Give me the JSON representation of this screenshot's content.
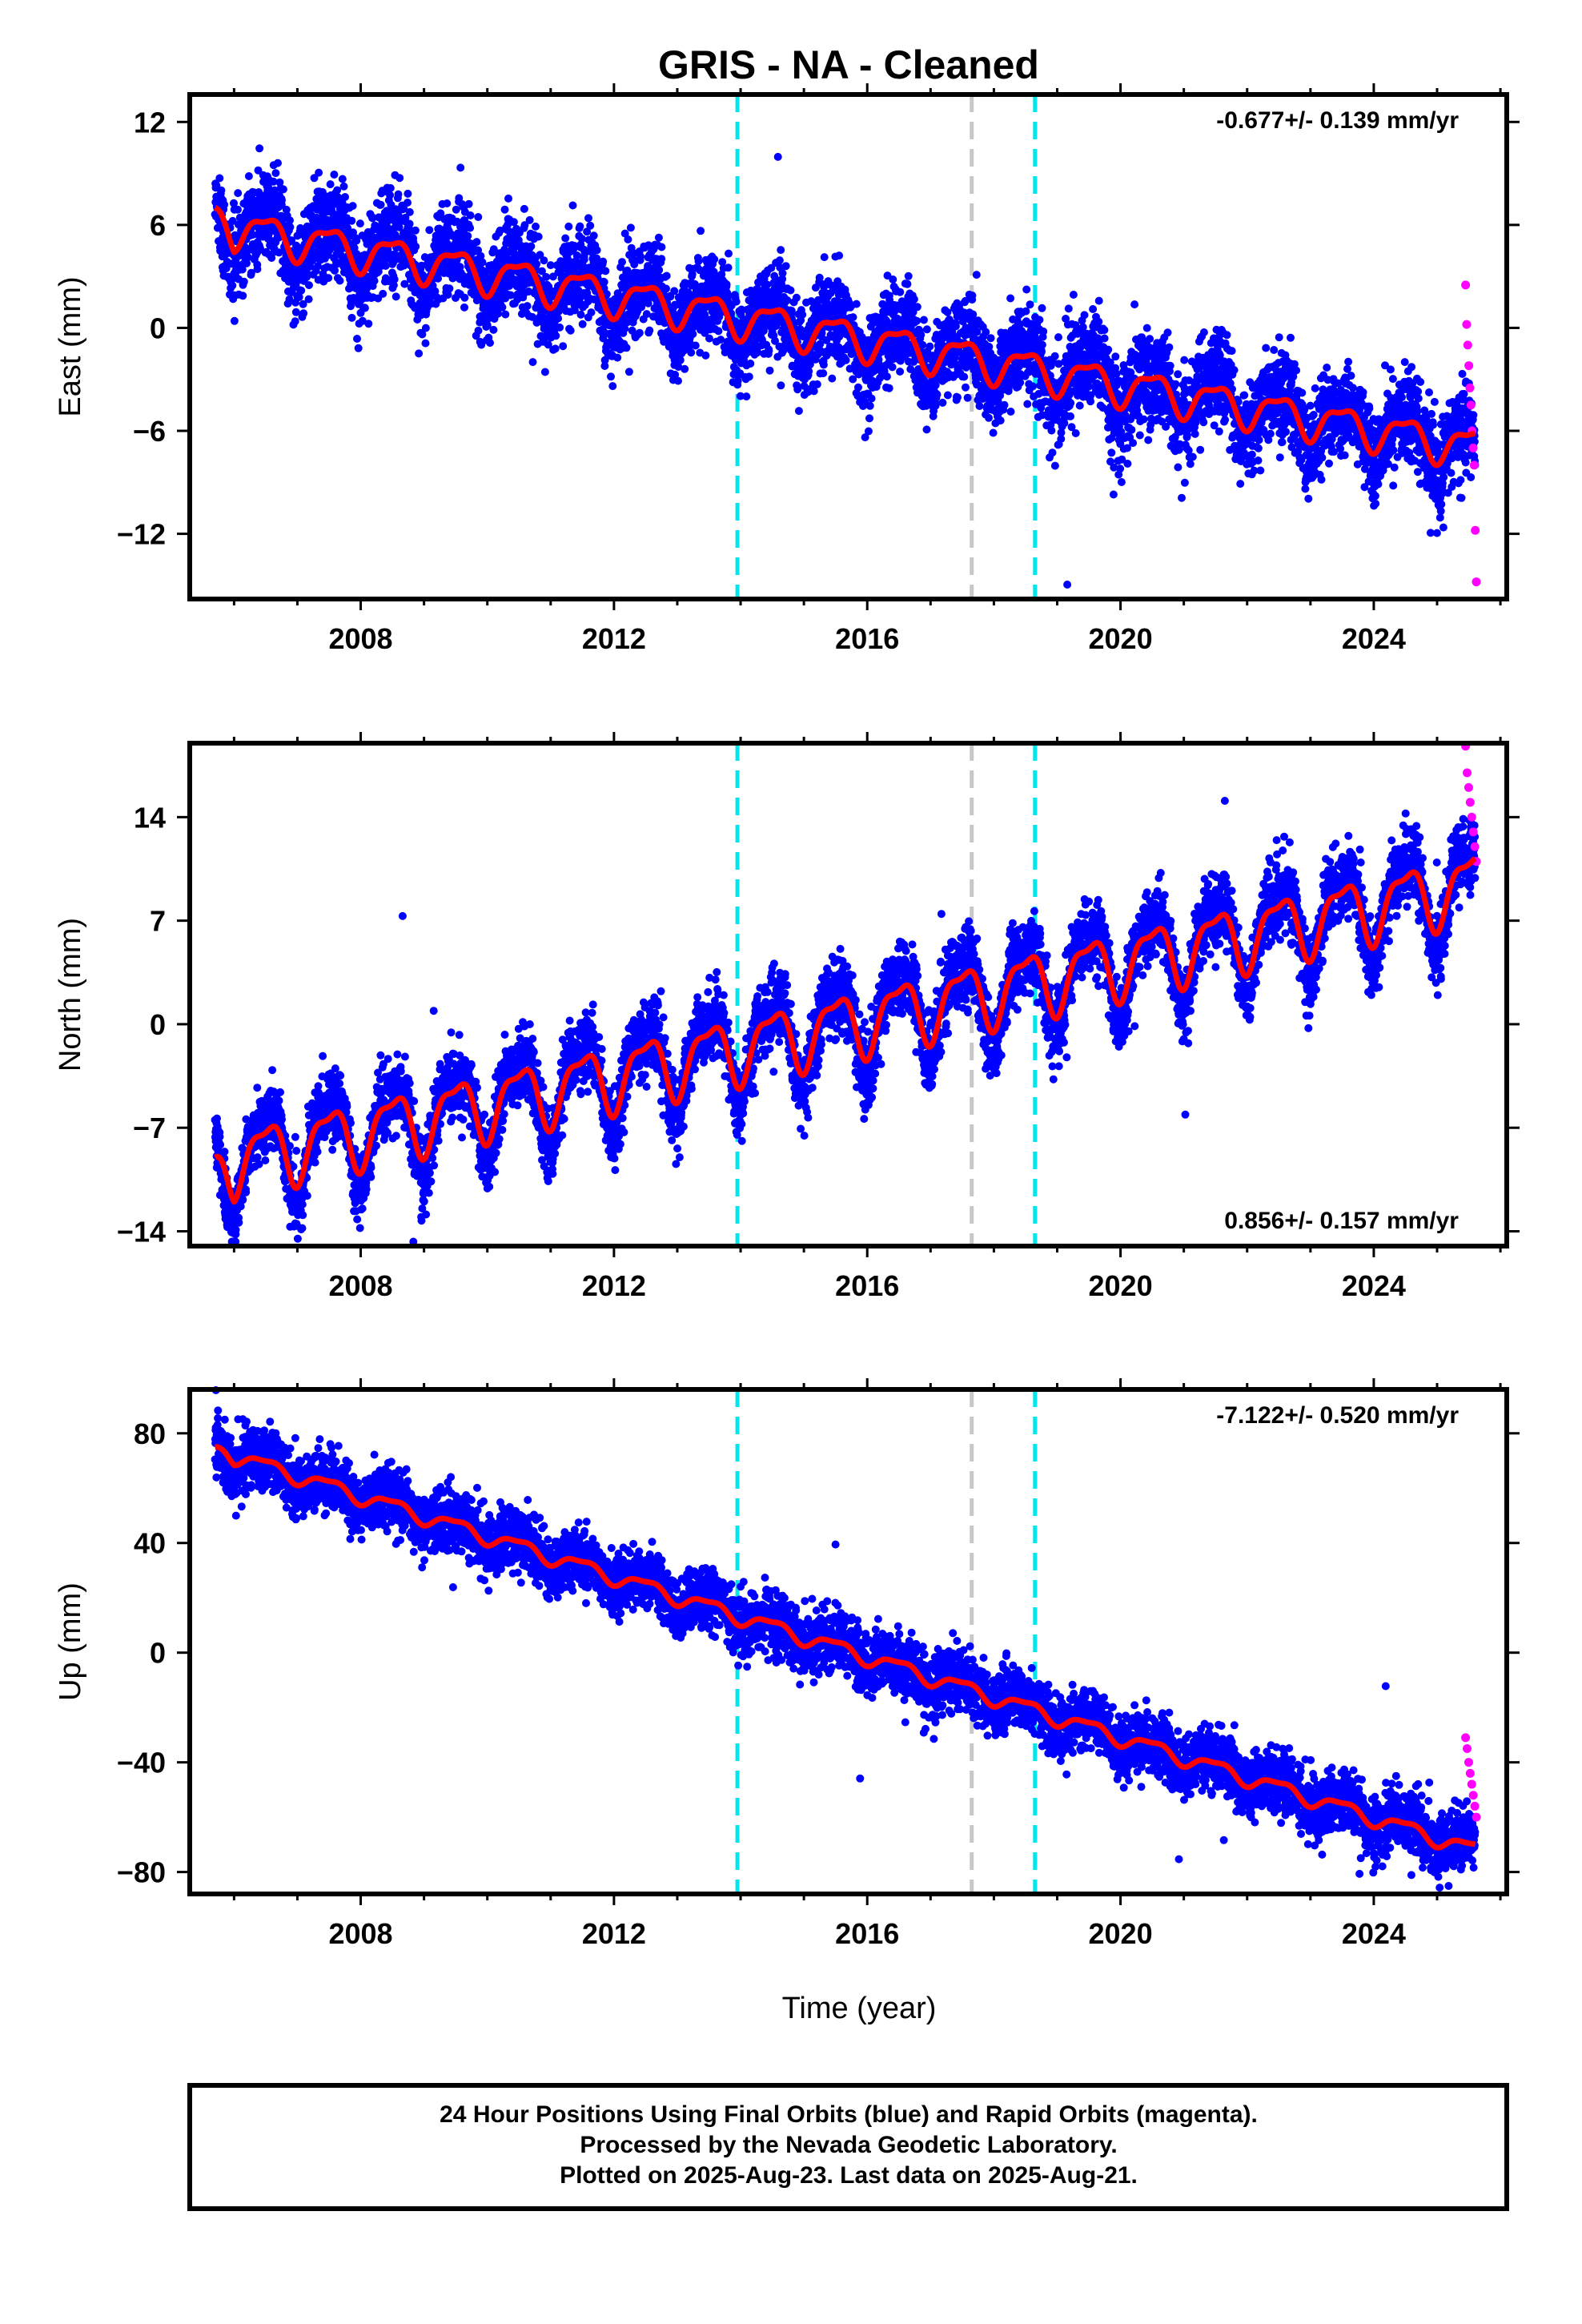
{
  "title": "GRIS  - NA - Cleaned",
  "xlabel": "Time (year)",
  "footer": [
    "24 Hour Positions Using Final Orbits (blue) and Rapid Orbits (magenta).",
    "Processed by the Nevada Geodetic Laboratory.",
    "Plotted on 2025-Aug-23. Last data on 2025-Aug-21."
  ],
  "colors": {
    "final_orbits": "#0000ff",
    "rapid_orbits": "#ff00ff",
    "model": "#ff0000",
    "equipment_change": "#00e5ee",
    "other_event": "#c8c8c8"
  },
  "chart_data": [
    {
      "type": "scatter",
      "ylabel": "East (mm)",
      "xlim": [
        2005.3,
        2026.1
      ],
      "ylim": [
        -15.8,
        13.6
      ],
      "x_ticks": [
        2008,
        2012,
        2016,
        2020,
        2024
      ],
      "y_ticks": [
        12,
        6,
        0,
        -6,
        -12
      ],
      "rate_label": "-0.677+/- 0.139 mm/yr",
      "vertical_lines": [
        {
          "x": 2013.95,
          "kind": "equipment_change"
        },
        {
          "x": 2017.65,
          "kind": "other_event"
        },
        {
          "x": 2018.65,
          "kind": "equipment_change"
        }
      ],
      "model": {
        "start": 2005.7,
        "end": 2025.6,
        "at_start": 7.0,
        "trend_start": 6.0,
        "trend_end": -7.0,
        "annual_amplitude": 1.4,
        "noise": 1.3,
        "outliers": 0.004
      },
      "rapid_points": {
        "x_start": 2025.45,
        "x_end": 2025.62,
        "values": [
          2.5,
          0.2,
          -1.0,
          -2.2,
          -3.5,
          -4.5,
          -6.0,
          -7.0,
          -8.0,
          -11.8,
          -14.8
        ]
      }
    },
    {
      "type": "scatter",
      "ylabel": "North (mm)",
      "xlim": [
        2005.3,
        2026.1
      ],
      "ylim": [
        -15.0,
        19.0
      ],
      "x_ticks": [
        2008,
        2012,
        2016,
        2020,
        2024
      ],
      "y_ticks": [
        14,
        7,
        0,
        -7,
        -14
      ],
      "rate_label": "0.856+/- 0.157 mm/yr",
      "vertical_lines": [
        {
          "x": 2013.95,
          "kind": "equipment_change"
        },
        {
          "x": 2017.65,
          "kind": "other_event"
        },
        {
          "x": 2018.65,
          "kind": "equipment_change"
        }
      ],
      "model": {
        "start": 2005.7,
        "end": 2025.6,
        "at_start": -9.0,
        "trend_start": -9.5,
        "trend_end": 9.5,
        "annual_amplitude": 2.8,
        "noise": 1.2,
        "outliers": 0.004
      },
      "rapid_points": {
        "x_start": 2025.45,
        "x_end": 2025.62,
        "values": [
          18.8,
          17.0,
          16.0,
          15.0,
          14.0,
          13.0,
          12.0,
          11.0
        ]
      }
    },
    {
      "type": "scatter",
      "ylabel": "Up (mm)",
      "xlim": [
        2005.3,
        2026.1
      ],
      "ylim": [
        -88.0,
        96.0
      ],
      "x_ticks": [
        2008,
        2012,
        2016,
        2020,
        2024
      ],
      "y_ticks": [
        80,
        40,
        0,
        -40,
        -80
      ],
      "rate_label": "-7.122+/- 0.520 mm/yr",
      "vertical_lines": [
        {
          "x": 2013.95,
          "kind": "equipment_change"
        },
        {
          "x": 2017.65,
          "kind": "other_event"
        },
        {
          "x": 2018.65,
          "kind": "equipment_change"
        }
      ],
      "model": {
        "start": 2005.7,
        "end": 2025.6,
        "at_start": 75.0,
        "trend_start": 74.0,
        "trend_end": -72.0,
        "annual_amplitude": 3.5,
        "noise": 5.5,
        "outliers": 0.003
      },
      "rapid_points": {
        "x_start": 2025.45,
        "x_end": 2025.62,
        "values": [
          -31.0,
          -35.0,
          -40.0,
          -44.0,
          -48.0,
          -52.0,
          -56.0,
          -60.0
        ]
      }
    }
  ]
}
